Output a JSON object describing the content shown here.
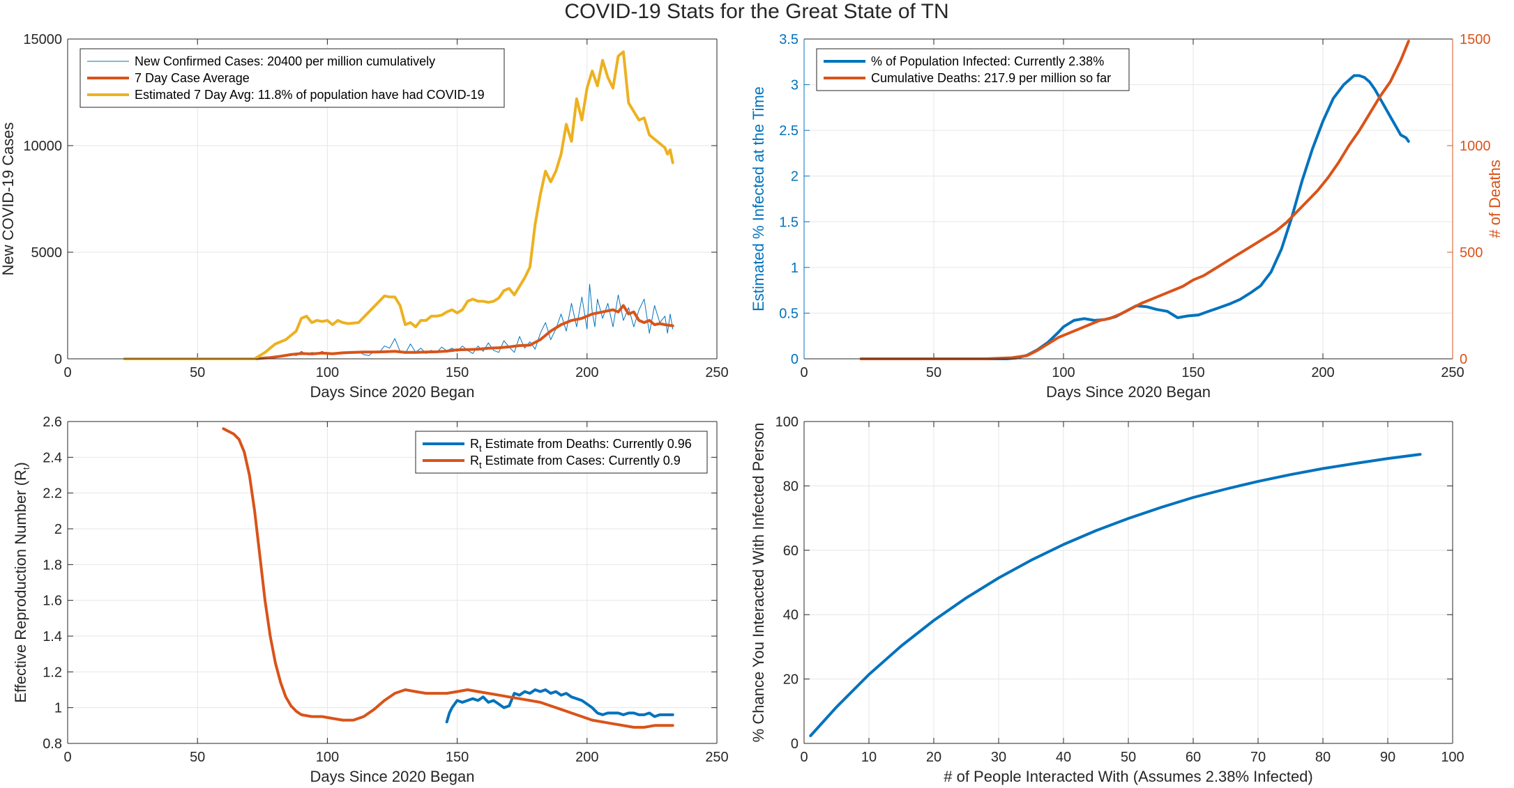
{
  "figure": {
    "title": "COVID-19 Stats for the Great State of TN"
  },
  "colors": {
    "blue": "#0072BD",
    "orange": "#D95319",
    "yellow": "#EDB120",
    "axis": "#262626",
    "grid": "#e6e6e6"
  },
  "chart_data": [
    {
      "type": "line",
      "id": "cases",
      "xlabel": "Days Since 2020 Began",
      "ylabel": "New COVID-19 Cases",
      "xlim": [
        0,
        250
      ],
      "ylim": [
        0,
        15000
      ],
      "xticks": [
        0,
        50,
        100,
        150,
        200,
        250
      ],
      "yticks": [
        0,
        5000,
        10000,
        15000
      ],
      "grid": true,
      "legend_position": "top-left",
      "series": [
        {
          "name": "New Confirmed Cases: 20400 per million cumulatively",
          "color": "blue",
          "width": 1,
          "x": [
            22,
            60,
            72,
            80,
            86,
            88,
            90,
            92,
            94,
            96,
            98,
            100,
            104,
            108,
            112,
            114,
            116,
            118,
            120,
            122,
            124,
            126,
            128,
            130,
            132,
            134,
            136,
            138,
            140,
            142,
            144,
            146,
            148,
            150,
            152,
            154,
            156,
            158,
            160,
            162,
            164,
            166,
            168,
            170,
            172,
            174,
            176,
            178,
            180,
            182,
            184,
            186,
            188,
            190,
            192,
            194,
            196,
            198,
            200,
            201,
            202,
            203,
            204,
            206,
            208,
            210,
            212,
            214,
            216,
            218,
            220,
            222,
            224,
            226,
            228,
            230,
            231,
            232,
            233
          ],
          "y": [
            0,
            0,
            0,
            80,
            250,
            150,
            350,
            200,
            300,
            250,
            350,
            200,
            300,
            250,
            350,
            200,
            150,
            350,
            300,
            600,
            500,
            950,
            350,
            250,
            700,
            300,
            500,
            250,
            400,
            280,
            550,
            380,
            500,
            350,
            600,
            400,
            250,
            600,
            350,
            750,
            400,
            300,
            850,
            550,
            300,
            1050,
            500,
            800,
            450,
            1200,
            1700,
            900,
            1400,
            2100,
            1300,
            2600,
            1500,
            2900,
            1400,
            3500,
            2200,
            1500,
            2800,
            1900,
            2600,
            1500,
            3000,
            1800,
            2400,
            1500,
            2300,
            2800,
            1200,
            2500,
            1700,
            2000,
            1200,
            2100,
            1400
          ]
        },
        {
          "name": "7 Day Case Average",
          "color": "orange",
          "width": 4,
          "x": [
            22,
            60,
            72,
            78,
            82,
            86,
            90,
            94,
            98,
            102,
            106,
            110,
            114,
            118,
            122,
            126,
            130,
            134,
            138,
            142,
            146,
            150,
            154,
            158,
            162,
            166,
            170,
            174,
            178,
            182,
            186,
            190,
            194,
            198,
            202,
            206,
            210,
            212,
            214,
            216,
            218,
            220,
            222,
            224,
            226,
            228,
            230,
            233
          ],
          "y": [
            0,
            0,
            0,
            60,
            120,
            200,
            250,
            230,
            270,
            240,
            280,
            300,
            320,
            320,
            330,
            350,
            300,
            300,
            320,
            330,
            360,
            420,
            430,
            450,
            500,
            520,
            560,
            620,
            640,
            900,
            1300,
            1600,
            1800,
            1900,
            2100,
            2200,
            2300,
            2200,
            2500,
            2100,
            2200,
            1800,
            1700,
            1800,
            1600,
            1650,
            1600,
            1550
          ]
        },
        {
          "name": "Estimated 7 Day Avg: 11.8% of population have had COVID-19",
          "color": "yellow",
          "width": 4,
          "x": [
            22,
            60,
            72,
            76,
            80,
            84,
            88,
            90,
            92,
            94,
            96,
            98,
            100,
            102,
            104,
            106,
            108,
            112,
            116,
            120,
            122,
            124,
            126,
            128,
            130,
            132,
            134,
            136,
            138,
            140,
            142,
            144,
            146,
            148,
            150,
            152,
            154,
            156,
            158,
            160,
            162,
            164,
            166,
            168,
            170,
            172,
            174,
            176,
            178,
            180,
            182,
            184,
            186,
            188,
            190,
            192,
            194,
            196,
            198,
            200,
            202,
            204,
            206,
            208,
            210,
            212,
            214,
            216,
            218,
            220,
            222,
            224,
            226,
            228,
            230,
            231,
            232,
            233
          ],
          "y": [
            0,
            0,
            0,
            300,
            700,
            900,
            1300,
            1900,
            2000,
            1700,
            1800,
            1750,
            1800,
            1600,
            1800,
            1700,
            1650,
            1700,
            2200,
            2700,
            2950,
            2900,
            2900,
            2500,
            1600,
            1700,
            1500,
            1800,
            1800,
            2000,
            2000,
            2050,
            2200,
            2300,
            2150,
            2300,
            2700,
            2800,
            2700,
            2700,
            2650,
            2700,
            2850,
            3200,
            3300,
            3000,
            3400,
            3800,
            4300,
            6300,
            7700,
            8800,
            8300,
            8800,
            9600,
            11000,
            10200,
            12200,
            11200,
            12700,
            13500,
            12800,
            14000,
            13200,
            12700,
            14200,
            14400,
            12000,
            11600,
            11200,
            11300,
            10500,
            10300,
            10100,
            9900,
            9600,
            9800,
            9200
          ]
        }
      ]
    },
    {
      "type": "line",
      "id": "infected",
      "xlabel": "Days Since 2020 Began",
      "ylabel": "Estimated % Infected at the Time",
      "y2label": "# of Deaths",
      "xlim": [
        0,
        250
      ],
      "ylim": [
        0,
        3.5
      ],
      "y2lim": [
        0,
        1500
      ],
      "xticks": [
        0,
        50,
        100,
        150,
        200,
        250
      ],
      "yticks": [
        0,
        0.5,
        1,
        1.5,
        2,
        2.5,
        3,
        3.5
      ],
      "y2ticks": [
        0,
        500,
        1000,
        1500
      ],
      "grid": true,
      "legend_position": "top-left",
      "series": [
        {
          "name": "% of Population Infected: Currently 2.38%",
          "color": "blue",
          "width": 4,
          "axis": "left",
          "x": [
            22,
            78,
            82,
            86,
            90,
            94,
            98,
            100,
            104,
            108,
            112,
            116,
            120,
            124,
            128,
            132,
            136,
            140,
            144,
            148,
            152,
            156,
            160,
            164,
            168,
            172,
            176,
            180,
            184,
            188,
            192,
            196,
            200,
            204,
            208,
            212,
            214,
            216,
            218,
            220,
            222,
            224,
            226,
            228,
            230,
            232,
            233
          ],
          "y": [
            0,
            0,
            0.01,
            0.04,
            0.1,
            0.18,
            0.29,
            0.35,
            0.42,
            0.44,
            0.42,
            0.43,
            0.46,
            0.52,
            0.58,
            0.57,
            0.54,
            0.52,
            0.45,
            0.47,
            0.48,
            0.52,
            0.56,
            0.6,
            0.65,
            0.72,
            0.8,
            0.95,
            1.2,
            1.55,
            1.95,
            2.3,
            2.6,
            2.85,
            3.0,
            3.1,
            3.1,
            3.08,
            3.03,
            2.95,
            2.85,
            2.75,
            2.65,
            2.55,
            2.45,
            2.42,
            2.38
          ]
        },
        {
          "name": "Cumulative Deaths: 217.9 per million so far",
          "color": "orange",
          "width": 4,
          "axis": "right",
          "x": [
            22,
            70,
            80,
            86,
            90,
            94,
            98,
            102,
            106,
            110,
            114,
            118,
            122,
            126,
            130,
            134,
            138,
            142,
            146,
            150,
            154,
            158,
            162,
            166,
            170,
            174,
            178,
            182,
            186,
            190,
            194,
            198,
            202,
            206,
            210,
            214,
            218,
            222,
            226,
            230,
            233
          ],
          "y": [
            0,
            0,
            5,
            15,
            40,
            70,
            100,
            120,
            140,
            160,
            180,
            190,
            210,
            235,
            260,
            280,
            300,
            320,
            340,
            370,
            390,
            420,
            450,
            480,
            510,
            540,
            570,
            600,
            640,
            690,
            740,
            790,
            850,
            920,
            1000,
            1070,
            1150,
            1230,
            1300,
            1400,
            1490
          ]
        }
      ]
    },
    {
      "type": "line",
      "id": "rt",
      "xlabel": "Days Since 2020 Began",
      "ylabel": "Effective Reproduction Number (R",
      "ylabel_sub": "t",
      "ylabel_end": ")",
      "xlim": [
        0,
        250
      ],
      "ylim": [
        0.8,
        2.6
      ],
      "xticks": [
        0,
        50,
        100,
        150,
        200,
        250
      ],
      "yticks": [
        0.8,
        1,
        1.2,
        1.4,
        1.6,
        1.8,
        2,
        2.2,
        2.4,
        2.6
      ],
      "grid": true,
      "legend_position": "top-right",
      "series": [
        {
          "name": "R",
          "name_sub": "t",
          "name_rest": " Estimate from Deaths: Currently 0.96",
          "color": "blue",
          "width": 4,
          "x": [
            146,
            147,
            148,
            149,
            150,
            152,
            154,
            156,
            158,
            160,
            162,
            164,
            166,
            168,
            170,
            172,
            174,
            176,
            178,
            180,
            182,
            184,
            186,
            188,
            190,
            192,
            194,
            196,
            198,
            200,
            202,
            204,
            206,
            208,
            210,
            212,
            214,
            216,
            218,
            220,
            222,
            224,
            226,
            228,
            230,
            232,
            233
          ],
          "y": [
            0.92,
            0.97,
            1.0,
            1.02,
            1.04,
            1.03,
            1.04,
            1.05,
            1.04,
            1.06,
            1.03,
            1.04,
            1.02,
            1.0,
            1.01,
            1.08,
            1.07,
            1.09,
            1.08,
            1.1,
            1.09,
            1.1,
            1.08,
            1.09,
            1.07,
            1.08,
            1.06,
            1.05,
            1.04,
            1.02,
            1.0,
            0.97,
            0.96,
            0.97,
            0.97,
            0.97,
            0.96,
            0.97,
            0.97,
            0.96,
            0.96,
            0.97,
            0.95,
            0.96,
            0.96,
            0.96,
            0.96
          ]
        },
        {
          "name": "R",
          "name_sub": "t",
          "name_rest": " Estimate from Cases: Currently 0.9",
          "color": "orange",
          "width": 4,
          "x": [
            60,
            64,
            66,
            68,
            70,
            72,
            74,
            76,
            78,
            80,
            82,
            84,
            86,
            88,
            90,
            94,
            98,
            102,
            106,
            110,
            114,
            118,
            122,
            126,
            130,
            134,
            138,
            142,
            146,
            150,
            154,
            158,
            162,
            166,
            170,
            174,
            178,
            182,
            186,
            190,
            194,
            198,
            202,
            206,
            210,
            214,
            218,
            222,
            226,
            230,
            233
          ],
          "y": [
            2.56,
            2.53,
            2.5,
            2.43,
            2.3,
            2.1,
            1.85,
            1.6,
            1.4,
            1.25,
            1.14,
            1.06,
            1.01,
            0.98,
            0.96,
            0.95,
            0.95,
            0.94,
            0.93,
            0.93,
            0.95,
            0.99,
            1.04,
            1.08,
            1.1,
            1.09,
            1.08,
            1.08,
            1.08,
            1.09,
            1.1,
            1.09,
            1.08,
            1.07,
            1.06,
            1.05,
            1.04,
            1.03,
            1.01,
            0.99,
            0.97,
            0.95,
            0.93,
            0.92,
            0.91,
            0.9,
            0.89,
            0.89,
            0.9,
            0.9,
            0.9
          ]
        }
      ]
    },
    {
      "type": "line",
      "id": "chance",
      "xlabel": "# of People Interacted With (Assumes 2.38% Infected)",
      "ylabel": "% Chance You Interacted With Infected Person",
      "xlim": [
        0,
        100
      ],
      "ylim": [
        0,
        100
      ],
      "xticks": [
        0,
        10,
        20,
        30,
        40,
        50,
        60,
        70,
        80,
        90,
        100
      ],
      "yticks": [
        0,
        20,
        40,
        60,
        80,
        100
      ],
      "grid": true,
      "series": [
        {
          "color": "blue",
          "width": 4,
          "x": [
            1,
            5,
            10,
            15,
            20,
            25,
            30,
            35,
            40,
            45,
            50,
            55,
            60,
            65,
            70,
            75,
            80,
            85,
            90,
            95
          ],
          "y": [
            2.38,
            11.3,
            21.4,
            30.3,
            38.2,
            45.2,
            51.4,
            56.9,
            61.8,
            66.1,
            69.9,
            73.3,
            76.4,
            79.0,
            81.4,
            83.5,
            85.4,
            87.0,
            88.5,
            89.8
          ]
        }
      ]
    }
  ]
}
